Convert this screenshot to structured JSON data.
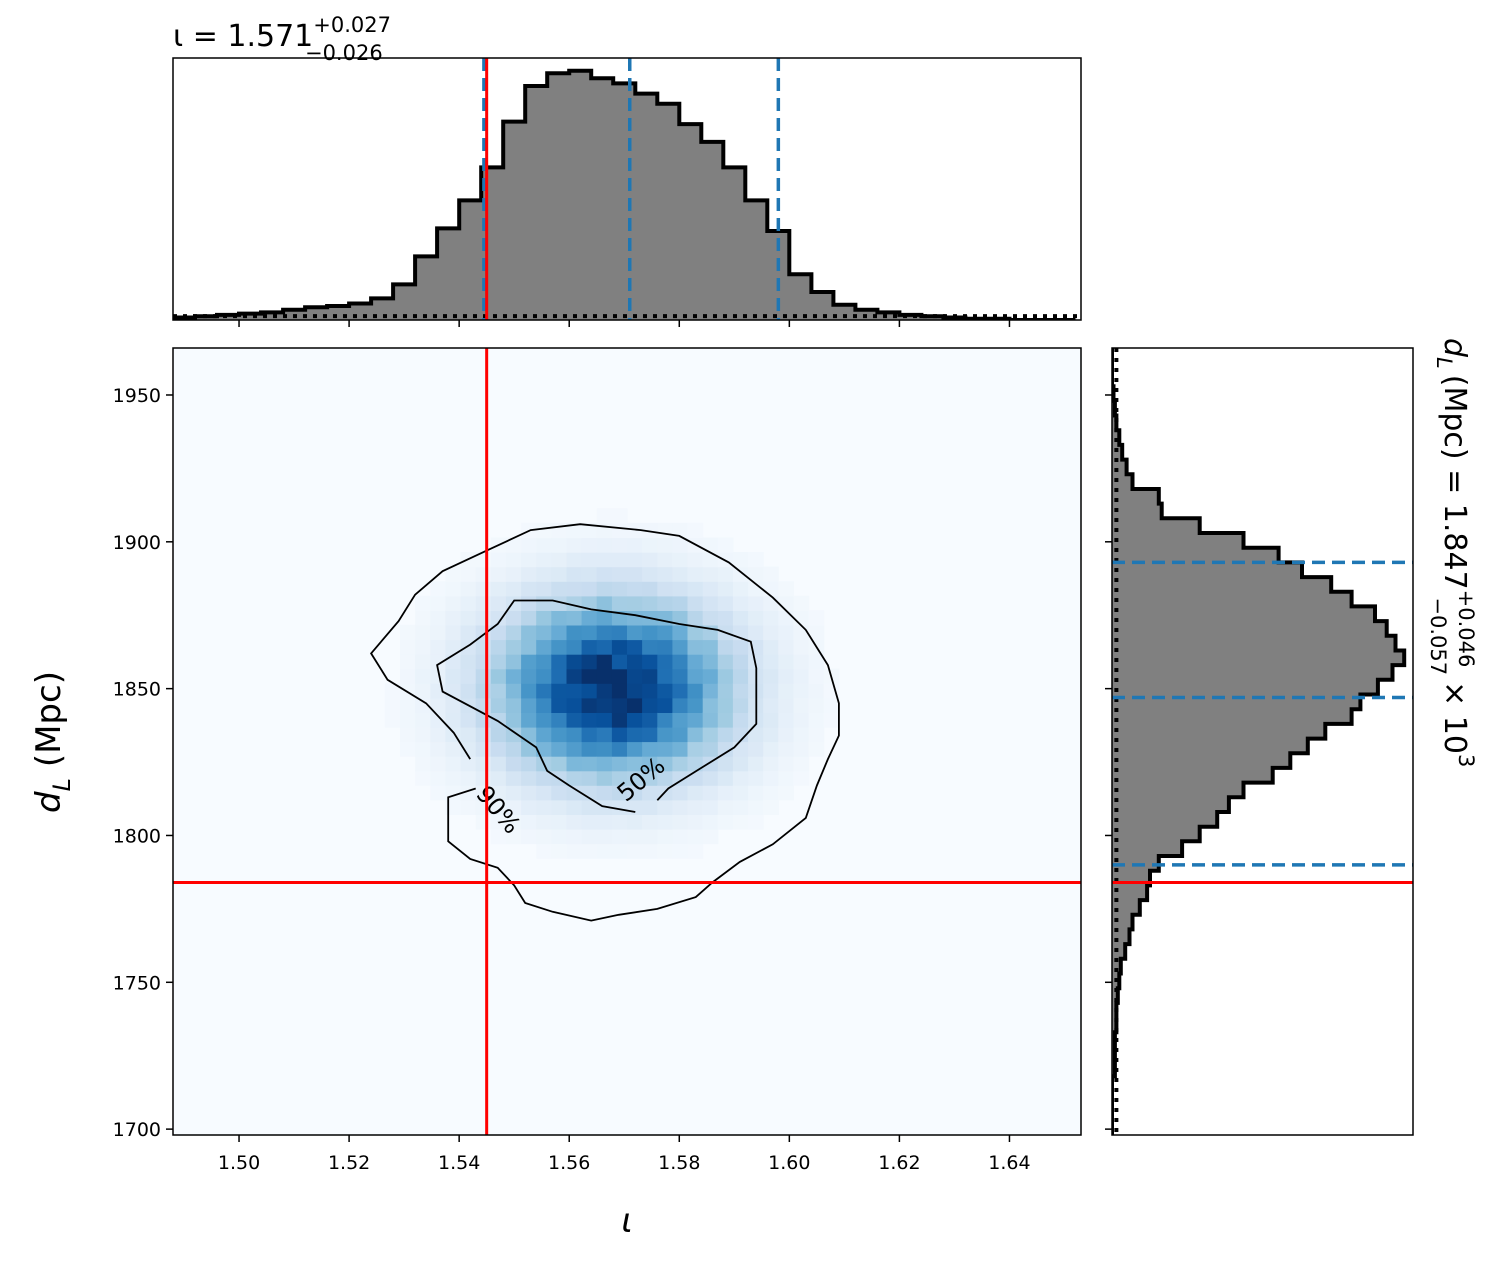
{
  "chart_data": [
    {
      "type": "heatmap",
      "panel": "joint",
      "xlabel": "ι",
      "ylabel": "d_L (Mpc)",
      "xlim": [
        1.488,
        1.653
      ],
      "ylim": [
        1698,
        1966
      ],
      "x_ticks": [
        1.5,
        1.52,
        1.54,
        1.56,
        1.58,
        1.6,
        1.62,
        1.64
      ],
      "x_tick_labels": [
        "1.50",
        "1.52",
        "1.54",
        "1.56",
        "1.58",
        "1.60",
        "1.62",
        "1.64"
      ],
      "y_ticks": [
        1700,
        1750,
        1800,
        1850,
        1900,
        1950
      ],
      "y_tick_labels": [
        "1700",
        "1750",
        "1800",
        "1850",
        "1900",
        "1950"
      ],
      "colormap": "Blues",
      "peak": {
        "x": 1.568,
        "y": 1850
      },
      "spread": {
        "x": 0.0145,
        "y": 21
      },
      "contours": [
        {
          "label": "50%",
          "points": [
            [
              1.572,
              1808
            ],
            [
              1.566,
              1810
            ],
            [
              1.56,
              1817
            ],
            [
              1.556,
              1822
            ],
            [
              1.554,
              1830
            ],
            [
              1.547,
              1839
            ],
            [
              1.537,
              1849
            ],
            [
              1.536,
              1858
            ],
            [
              1.542,
              1865
            ],
            [
              1.547,
              1872
            ],
            [
              1.55,
              1880
            ],
            [
              1.557,
              1880
            ],
            [
              1.564,
              1877
            ],
            [
              1.572,
              1875
            ],
            [
              1.58,
              1872
            ],
            [
              1.587,
              1870
            ],
            [
              1.593,
              1866
            ],
            [
              1.594,
              1857
            ],
            [
              1.594,
              1848
            ],
            [
              1.594,
              1838
            ],
            [
              1.59,
              1830
            ],
            [
              1.584,
              1823
            ],
            [
              1.578,
              1816
            ],
            [
              1.576,
              1812
            ]
          ],
          "closed": false
        },
        {
          "label": "90%",
          "points": [
            [
              1.543,
              1816
            ],
            [
              1.538,
              1813
            ],
            [
              1.538,
              1806
            ],
            [
              1.538,
              1798
            ],
            [
              1.542,
              1792
            ],
            [
              1.547,
              1789
            ],
            [
              1.55,
              1783
            ],
            [
              1.552,
              1777
            ],
            [
              1.557,
              1774
            ],
            [
              1.564,
              1771
            ],
            [
              1.569,
              1773
            ],
            [
              1.576,
              1775
            ],
            [
              1.583,
              1779
            ],
            [
              1.586,
              1784
            ],
            [
              1.591,
              1791
            ],
            [
              1.597,
              1797
            ],
            [
              1.603,
              1806
            ],
            [
              1.605,
              1817
            ],
            [
              1.607,
              1826
            ],
            [
              1.609,
              1834
            ],
            [
              1.609,
              1845
            ],
            [
              1.607,
              1858
            ],
            [
              1.603,
              1870
            ],
            [
              1.597,
              1881
            ],
            [
              1.589,
              1893
            ],
            [
              1.58,
              1902
            ],
            [
              1.573,
              1904
            ],
            [
              1.562,
              1906
            ],
            [
              1.553,
              1904
            ],
            [
              1.545,
              1897
            ],
            [
              1.537,
              1890
            ],
            [
              1.532,
              1882
            ],
            [
              1.529,
              1873
            ],
            [
              1.524,
              1862
            ],
            [
              1.527,
              1853
            ],
            [
              1.534,
              1845
            ],
            [
              1.539,
              1835
            ],
            [
              1.542,
              1826
            ]
          ],
          "closed": false
        }
      ],
      "contour_labels": [
        {
          "text": "50%",
          "x": 1.574,
          "y": 1817,
          "angle": -40
        },
        {
          "text": "90%",
          "x": 1.546,
          "y": 1807,
          "angle": 50
        }
      ],
      "truth": {
        "x": 1.545,
        "y": 1784
      },
      "colors": {
        "truth": "#ff0000",
        "contour": "#000000"
      }
    },
    {
      "type": "bar",
      "panel": "top-marginal",
      "title": "ι = 1.571^{+0.027}_{-0.026}",
      "title_parts": {
        "prefix": "ι = 1.571",
        "sup": "+0.027",
        "sub": "−0.026"
      },
      "xlim": [
        1.488,
        1.653
      ],
      "ylim": [
        0,
        1.03
      ],
      "bin_edges_start": 1.488,
      "bin_width": 0.004,
      "values": [
        0.01,
        0.015,
        0.02,
        0.025,
        0.03,
        0.04,
        0.05,
        0.055,
        0.065,
        0.085,
        0.14,
        0.25,
        0.36,
        0.47,
        0.6,
        0.78,
        0.92,
        0.97,
        0.98,
        0.95,
        0.93,
        0.89,
        0.85,
        0.77,
        0.7,
        0.6,
        0.47,
        0.35,
        0.18,
        0.11,
        0.06,
        0.04,
        0.03,
        0.02,
        0.015,
        0.01,
        0.005,
        0.005,
        0.0,
        0.0,
        0.0
      ],
      "quantile_lines": [
        1.5445,
        1.571,
        1.598
      ],
      "truth": 1.545,
      "prior_level": 0.015,
      "colors": {
        "fill": "#808080",
        "edge": "#000000",
        "quantiles": "#1f77b4",
        "truth": "#ff0000"
      }
    },
    {
      "type": "bar",
      "panel": "right-marginal",
      "title": "d_L (Mpc) = 1.847^{+0.046}_{-0.057} × 10^3",
      "title_parts": {
        "prefix": "(Mpc) = 1.847",
        "var": "d",
        "varsub": "L",
        "sup": "+0.046",
        "sub": "−0.057",
        "suffix": "× 10",
        "exp": "3"
      },
      "ylim": [
        1698,
        1966
      ],
      "bin_edges_start": 1698,
      "bin_width": 5,
      "values": [
        0.0,
        0.0,
        0.0,
        0.0,
        0.01,
        0.01,
        0.01,
        0.015,
        0.015,
        0.02,
        0.025,
        0.03,
        0.045,
        0.06,
        0.07,
        0.095,
        0.12,
        0.13,
        0.16,
        0.24,
        0.3,
        0.36,
        0.4,
        0.45,
        0.55,
        0.61,
        0.67,
        0.73,
        0.82,
        0.85,
        0.91,
        0.96,
        1.0,
        0.97,
        0.94,
        0.9,
        0.82,
        0.75,
        0.65,
        0.57,
        0.45,
        0.3,
        0.17,
        0.16,
        0.07,
        0.05,
        0.035,
        0.025,
        0.015,
        0.01,
        0.005,
        0.0,
        0.0,
        0.0
      ],
      "quantile_lines": [
        1790,
        1847,
        1893
      ],
      "truth": 1784,
      "prior_level": 0.015,
      "colors": {
        "fill": "#808080",
        "edge": "#000000",
        "quantiles": "#1f77b4",
        "truth": "#ff0000"
      }
    }
  ]
}
